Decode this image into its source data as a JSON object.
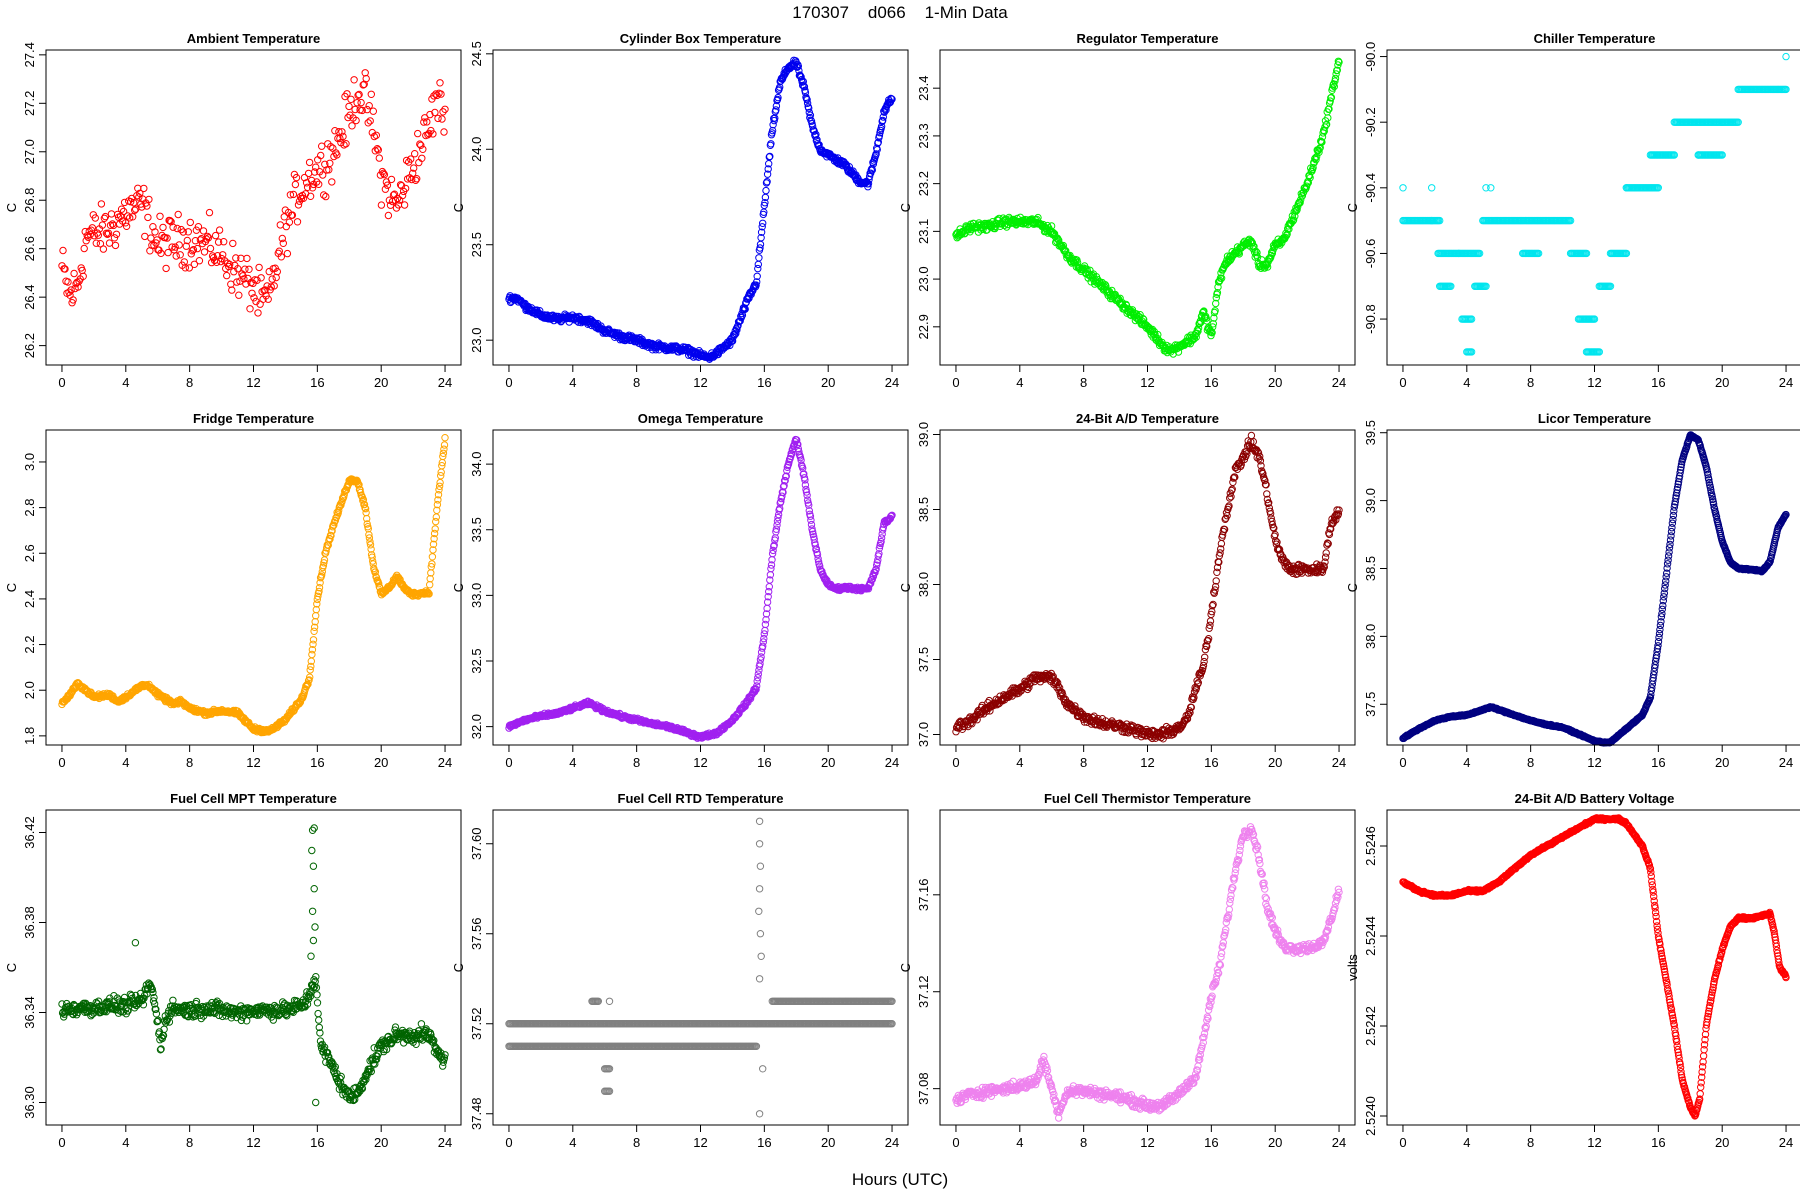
{
  "figure": {
    "title": "170307    d066    1-Min Data",
    "xlabel": "Hours (UTC)"
  },
  "chart_data": [
    {
      "type": "scatter",
      "title": "Ambient Temperature",
      "ylabel": "C",
      "color": "#ff0000",
      "xlim": [
        -1,
        25
      ],
      "ylim": [
        26.12,
        27.42
      ],
      "xticks": [
        0,
        4,
        8,
        12,
        16,
        20,
        24
      ],
      "yticks": [
        26.2,
        26.4,
        26.6,
        26.8,
        27.0,
        27.2,
        27.4
      ],
      "x": [
        0,
        0.5,
        1,
        1.5,
        2,
        3,
        4,
        5,
        5.5,
        6,
        7,
        8,
        9,
        10,
        11,
        12,
        12.5,
        13,
        13.5,
        14,
        14.5,
        15,
        15.5,
        16,
        17,
        18,
        18.5,
        19,
        19.5,
        20,
        20.5,
        21,
        22,
        23,
        23.5,
        24
      ],
      "y": [
        26.52,
        26.4,
        26.45,
        26.65,
        26.66,
        26.68,
        26.75,
        26.78,
        26.7,
        26.62,
        26.63,
        26.64,
        26.62,
        26.58,
        26.5,
        26.44,
        26.38,
        26.4,
        26.55,
        26.68,
        26.78,
        26.85,
        26.9,
        26.92,
        27.0,
        27.15,
        27.25,
        27.22,
        27.1,
        26.9,
        26.82,
        26.78,
        26.95,
        27.1,
        27.22,
        27.15
      ],
      "noise": 0.09,
      "density": 380,
      "marker": "circle"
    },
    {
      "type": "scatter",
      "title": "Cylinder Box Temperature",
      "ylabel": "C",
      "color": "#0000ee",
      "xlim": [
        -1,
        25
      ],
      "ylim": [
        22.87,
        24.52
      ],
      "xticks": [
        0,
        4,
        8,
        12,
        16,
        20,
        24
      ],
      "yticks": [
        23.0,
        23.5,
        24.0,
        24.5
      ],
      "x": [
        0,
        0.5,
        1,
        2,
        3,
        4,
        5,
        6,
        7,
        8,
        9,
        10,
        11,
        12,
        12.5,
        13,
        14,
        15,
        15.5,
        16,
        16.5,
        17,
        17.5,
        18,
        18.5,
        19,
        19.5,
        20,
        21,
        22,
        22.5,
        23,
        23.5,
        24
      ],
      "y": [
        23.22,
        23.22,
        23.18,
        23.13,
        23.11,
        23.12,
        23.1,
        23.05,
        23.02,
        23.0,
        22.97,
        22.96,
        22.95,
        22.92,
        22.91,
        22.93,
        23.0,
        23.22,
        23.3,
        23.7,
        24.1,
        24.35,
        24.43,
        24.45,
        24.32,
        24.12,
        24.0,
        23.97,
        23.92,
        23.83,
        23.82,
        23.98,
        24.2,
        24.27
      ],
      "noise": 0.015,
      "density": 700,
      "marker": "circle"
    },
    {
      "type": "scatter",
      "title": "Regulator Temperature",
      "ylabel": "C",
      "color": "#00ee00",
      "xlim": [
        -1,
        25
      ],
      "ylim": [
        22.82,
        23.48
      ],
      "xticks": [
        0,
        4,
        8,
        12,
        16,
        20,
        24
      ],
      "yticks": [
        22.9,
        23.0,
        23.1,
        23.2,
        23.3,
        23.4
      ],
      "x": [
        0,
        1,
        2,
        3,
        4,
        5,
        6,
        7,
        8,
        9,
        10,
        11,
        12,
        13,
        13.5,
        14,
        15,
        15.5,
        16,
        16.5,
        17,
        18,
        18.5,
        19,
        19.5,
        20,
        20.5,
        21,
        22,
        23,
        24
      ],
      "y": [
        23.09,
        23.11,
        23.11,
        23.12,
        23.12,
        23.12,
        23.1,
        23.05,
        23.02,
        22.99,
        22.96,
        22.93,
        22.9,
        22.86,
        22.85,
        22.86,
        22.88,
        22.93,
        22.88,
        23.0,
        23.04,
        23.07,
        23.08,
        23.03,
        23.03,
        23.07,
        23.08,
        23.12,
        23.2,
        23.3,
        23.46
      ],
      "noise": 0.008,
      "density": 650,
      "marker": "circle"
    },
    {
      "type": "scatter",
      "title": "Chiller Temperature",
      "ylabel": "C",
      "color": "#00e5ee",
      "xlim": [
        -1,
        25
      ],
      "ylim": [
        -90.94,
        -89.98
      ],
      "xticks": [
        0,
        4,
        8,
        12,
        16,
        20,
        24
      ],
      "yticks": [
        -90.8,
        -90.6,
        -90.4,
        -90.2,
        -90.0
      ],
      "segments": [
        [
          0,
          1.8,
          -90.5
        ],
        [
          1.8,
          2.3,
          -90.5
        ],
        [
          2.2,
          3.5,
          -90.6
        ],
        [
          2.3,
          3.0,
          -90.7
        ],
        [
          3.5,
          4.8,
          -90.6
        ],
        [
          3.7,
          4.3,
          -90.8
        ],
        [
          4.0,
          4.3,
          -90.9
        ],
        [
          4.5,
          5.2,
          -90.7
        ],
        [
          5.0,
          10.5,
          -90.5
        ],
        [
          7.5,
          8.5,
          -90.6
        ],
        [
          10.5,
          11.5,
          -90.6
        ],
        [
          11.0,
          12.0,
          -90.8
        ],
        [
          11.5,
          12.3,
          -90.9
        ],
        [
          12.3,
          13.0,
          -90.7
        ],
        [
          13.0,
          14.0,
          -90.6
        ],
        [
          14.0,
          16.0,
          -90.4
        ],
        [
          15.5,
          17.0,
          -90.3
        ],
        [
          17.0,
          20.0,
          -90.2
        ],
        [
          18.5,
          20.0,
          -90.3
        ],
        [
          20.0,
          21.0,
          -90.2
        ],
        [
          21.0,
          24.0,
          -90.1
        ]
      ],
      "singles": [
        [
          0,
          -90.4
        ],
        [
          1.8,
          -90.4
        ],
        [
          5.2,
          -90.4
        ],
        [
          5.5,
          -90.4
        ],
        [
          14.0,
          -90.4
        ],
        [
          18.5,
          -90.3
        ],
        [
          24.0,
          -90.0
        ]
      ],
      "marker": "circle"
    },
    {
      "type": "scatter",
      "title": "Fridge Temperature",
      "ylabel": "C",
      "color": "#ffa500",
      "xlim": [
        -1,
        25
      ],
      "ylim": [
        1.76,
        3.14
      ],
      "xticks": [
        0,
        4,
        8,
        12,
        16,
        20,
        24
      ],
      "yticks": [
        1.8,
        2.0,
        2.2,
        2.4,
        2.6,
        2.8,
        3.0
      ],
      "x": [
        0,
        0.5,
        1,
        2,
        3,
        3.5,
        4,
        5,
        5.5,
        6,
        7,
        7.5,
        8,
        9,
        10,
        11,
        12,
        13,
        14,
        15,
        15.5,
        16,
        16.5,
        17,
        17.5,
        18,
        18.5,
        19,
        19.5,
        20,
        20.5,
        21,
        21.5,
        22,
        23,
        23.5,
        24
      ],
      "y": [
        1.94,
        1.98,
        2.03,
        1.97,
        1.98,
        1.95,
        1.97,
        2.02,
        2.02,
        1.98,
        1.94,
        1.95,
        1.92,
        1.9,
        1.91,
        1.9,
        1.83,
        1.82,
        1.87,
        1.96,
        2.05,
        2.4,
        2.6,
        2.72,
        2.82,
        2.92,
        2.92,
        2.8,
        2.55,
        2.42,
        2.45,
        2.5,
        2.44,
        2.42,
        2.43,
        2.8,
        3.1
      ],
      "noise": 0.008,
      "density": 700,
      "marker": "circle"
    },
    {
      "type": "scatter",
      "title": "Omega Temperature",
      "ylabel": "C",
      "color": "#a020f0",
      "xlim": [
        -1,
        25
      ],
      "ylim": [
        31.86,
        34.26
      ],
      "xticks": [
        0,
        4,
        8,
        12,
        16,
        20,
        24
      ],
      "yticks": [
        32.0,
        32.5,
        33.0,
        33.5,
        34.0
      ],
      "x": [
        0,
        1,
        2,
        3,
        4,
        5,
        6,
        7,
        8,
        9,
        10,
        11,
        12,
        13,
        14,
        15,
        15.5,
        16,
        16.5,
        17,
        17.5,
        18,
        18.5,
        19,
        19.5,
        20,
        20.5,
        21,
        22,
        22.5,
        23,
        23.5,
        24
      ],
      "y": [
        32.0,
        32.05,
        32.08,
        32.1,
        32.14,
        32.18,
        32.12,
        32.08,
        32.05,
        32.02,
        32.0,
        31.96,
        31.92,
        31.95,
        32.05,
        32.2,
        32.3,
        32.7,
        33.3,
        33.7,
        34.0,
        34.2,
        33.9,
        33.5,
        33.2,
        33.08,
        33.05,
        33.06,
        33.05,
        33.05,
        33.2,
        33.55,
        33.6
      ],
      "noise": 0.012,
      "density": 700,
      "marker": "circle"
    },
    {
      "type": "scatter",
      "title": "24-Bit A/D Temperature",
      "ylabel": "C",
      "color": "#8b0000",
      "xlim": [
        -1,
        25
      ],
      "ylim": [
        36.93,
        39.03
      ],
      "xticks": [
        0,
        4,
        8,
        12,
        16,
        20,
        24
      ],
      "yticks": [
        37.0,
        37.5,
        38.0,
        38.5,
        39.0
      ],
      "x": [
        0,
        1,
        2,
        3,
        4,
        5,
        6,
        6.5,
        7,
        8,
        9,
        10,
        11,
        12,
        13,
        14,
        14.5,
        15,
        15.5,
        16,
        16.5,
        17,
        17.5,
        18,
        18.5,
        19,
        19.5,
        20,
        20.5,
        21,
        22,
        23,
        23.5,
        24
      ],
      "y": [
        37.05,
        37.1,
        37.18,
        37.25,
        37.3,
        37.38,
        37.38,
        37.3,
        37.2,
        37.12,
        37.08,
        37.06,
        37.04,
        37.0,
        37.0,
        37.05,
        37.1,
        37.3,
        37.45,
        37.8,
        38.2,
        38.5,
        38.75,
        38.85,
        38.95,
        38.85,
        38.6,
        38.3,
        38.15,
        38.1,
        38.1,
        38.1,
        38.4,
        38.5
      ],
      "noise": 0.03,
      "density": 600,
      "marker": "circle"
    },
    {
      "type": "scatter",
      "title": "Licor Temperature",
      "ylabel": "C",
      "color": "#000080",
      "xlim": [
        -1,
        25
      ],
      "ylim": [
        37.2,
        39.52
      ],
      "xticks": [
        0,
        4,
        8,
        12,
        16,
        20,
        24
      ],
      "yticks": [
        37.5,
        38.0,
        38.5,
        39.0,
        39.5
      ],
      "x": [
        0,
        1,
        2,
        3,
        4,
        5,
        5.5,
        6,
        7,
        8,
        9,
        10,
        11,
        12,
        12.5,
        13,
        14,
        15,
        15.5,
        16,
        16.5,
        17,
        17.5,
        18,
        18.5,
        19,
        19.5,
        20,
        20.5,
        21,
        22,
        22.5,
        23,
        23.5,
        24
      ],
      "y": [
        37.25,
        37.32,
        37.38,
        37.41,
        37.42,
        37.46,
        37.48,
        37.46,
        37.42,
        37.38,
        37.35,
        37.33,
        37.28,
        37.23,
        37.22,
        37.22,
        37.32,
        37.42,
        37.55,
        37.95,
        38.45,
        38.95,
        39.3,
        39.48,
        39.45,
        39.25,
        38.95,
        38.7,
        38.55,
        38.5,
        38.49,
        38.48,
        38.55,
        38.8,
        38.9
      ],
      "noise": 0.004,
      "density": 800,
      "marker": "circle"
    },
    {
      "type": "scatter",
      "title": "Fuel Cell MPT Temperature",
      "ylabel": "C",
      "color": "#006400",
      "xlim": [
        -1,
        25
      ],
      "ylim": [
        36.29,
        36.43
      ],
      "xticks": [
        0,
        4,
        8,
        12,
        16,
        20,
        24
      ],
      "yticks": [
        36.3,
        36.34,
        36.38,
        36.42
      ],
      "x": [
        0,
        1,
        2,
        3,
        4,
        5,
        5.3,
        5.6,
        5.9,
        6.2,
        6.5,
        7,
        8,
        9,
        10,
        11,
        12,
        13,
        14,
        15,
        15.3,
        15.6,
        15.9,
        16.2,
        16.8,
        17.5,
        18,
        18.5,
        19,
        20,
        21,
        22,
        23,
        23.5,
        24
      ],
      "y": [
        36.341,
        36.342,
        36.342,
        36.343,
        36.343,
        36.345,
        36.35,
        36.352,
        36.34,
        36.325,
        36.338,
        36.342,
        36.341,
        36.342,
        36.341,
        36.34,
        36.341,
        36.341,
        36.341,
        36.343,
        36.345,
        36.35,
        36.356,
        36.325,
        36.318,
        36.308,
        36.302,
        36.304,
        36.312,
        36.325,
        36.33,
        36.33,
        36.33,
        36.322,
        36.319
      ],
      "noise": 0.003,
      "density": 650,
      "marker": "circle",
      "outliers": [
        [
          4.6,
          36.371
        ],
        [
          15.7,
          36.421
        ],
        [
          15.8,
          36.422
        ],
        [
          15.65,
          36.412
        ],
        [
          15.75,
          36.405
        ],
        [
          15.8,
          36.395
        ],
        [
          15.7,
          36.385
        ],
        [
          15.85,
          36.378
        ],
        [
          15.75,
          36.372
        ],
        [
          15.6,
          36.365
        ],
        [
          15.9,
          36.3
        ]
      ]
    },
    {
      "type": "scatter",
      "title": "Fuel Cell RTD Temperature",
      "ylabel": "C",
      "color": "#808080",
      "xlim": [
        -1,
        25
      ],
      "ylim": [
        37.475,
        37.615
      ],
      "xticks": [
        0,
        4,
        8,
        12,
        16,
        20,
        24
      ],
      "yticks": [
        37.48,
        37.52,
        37.56,
        37.6
      ],
      "segments": [
        [
          0,
          15.5,
          37.51
        ],
        [
          0,
          15.5,
          37.52
        ],
        [
          15.5,
          24,
          37.52
        ],
        [
          16.5,
          24,
          37.53
        ],
        [
          5.2,
          5.6,
          37.53
        ],
        [
          6.0,
          6.3,
          37.5
        ],
        [
          6.0,
          6.3,
          37.49
        ]
      ],
      "singles": [
        [
          6.3,
          37.53
        ],
        [
          15.7,
          37.61
        ],
        [
          15.7,
          37.6
        ],
        [
          15.75,
          37.59
        ],
        [
          15.7,
          37.58
        ],
        [
          15.65,
          37.57
        ],
        [
          15.75,
          37.56
        ],
        [
          15.8,
          37.55
        ],
        [
          15.7,
          37.54
        ],
        [
          15.9,
          37.5
        ],
        [
          15.7,
          37.48
        ]
      ],
      "marker": "circle"
    },
    {
      "type": "scatter",
      "title": "Fuel Cell Thermistor Temperature",
      "ylabel": "C",
      "color": "#ee82ee",
      "xlim": [
        -1,
        25
      ],
      "ylim": [
        37.065,
        37.195
      ],
      "xticks": [
        0,
        4,
        8,
        12,
        16,
        20,
        24
      ],
      "yticks": [
        37.08,
        37.12,
        37.16
      ],
      "x": [
        0,
        1,
        2,
        3,
        4,
        5,
        5.5,
        6,
        6.4,
        7,
        8,
        9,
        10,
        11,
        12,
        13,
        14,
        15,
        15.5,
        16,
        16.5,
        17,
        17.5,
        18,
        18.5,
        19,
        19.5,
        20,
        20.5,
        21,
        22,
        23,
        23.5,
        24
      ],
      "y": [
        37.075,
        37.078,
        37.079,
        37.08,
        37.081,
        37.083,
        37.092,
        37.08,
        37.07,
        37.079,
        37.079,
        37.078,
        37.077,
        37.075,
        37.073,
        37.073,
        37.078,
        37.085,
        37.1,
        37.118,
        37.13,
        37.15,
        37.17,
        37.185,
        37.188,
        37.175,
        37.155,
        37.145,
        37.139,
        37.138,
        37.138,
        37.14,
        37.15,
        37.162
      ],
      "noise": 0.0018,
      "density": 650,
      "marker": "circle"
    },
    {
      "type": "scatter",
      "title": "24-Bit A/D Battery Voltage",
      "ylabel": "volts",
      "color": "#ff0000",
      "xlim": [
        -1,
        25
      ],
      "ylim": [
        2.52398,
        2.52468
      ],
      "xticks": [
        0,
        4,
        8,
        12,
        16,
        20,
        24
      ],
      "yticks": [
        2.524,
        2.5242,
        2.5244,
        2.5246
      ],
      "x": [
        0,
        0.5,
        1,
        2,
        3,
        4,
        5,
        6,
        7,
        8,
        9,
        10,
        11,
        12,
        12.5,
        13,
        13.5,
        14,
        15,
        15.5,
        16,
        17,
        17.5,
        18,
        18.3,
        18.6,
        19,
        19.5,
        20,
        20.5,
        21,
        22,
        23,
        23.3,
        23.6,
        24
      ],
      "y": [
        2.52452,
        2.52451,
        2.5245,
        2.52449,
        2.52449,
        2.5245,
        2.5245,
        2.52452,
        2.52455,
        2.52458,
        2.5246,
        2.52462,
        2.52464,
        2.52466,
        2.52466,
        2.52466,
        2.52466,
        2.52465,
        2.5246,
        2.52455,
        2.5244,
        2.5242,
        2.52408,
        2.52402,
        2.524,
        2.52404,
        2.5242,
        2.5243,
        2.52437,
        2.52442,
        2.52444,
        2.52444,
        2.52445,
        2.5244,
        2.52433,
        2.52431
      ],
      "noise": 2e-06,
      "density": 800,
      "marker": "circle"
    }
  ]
}
